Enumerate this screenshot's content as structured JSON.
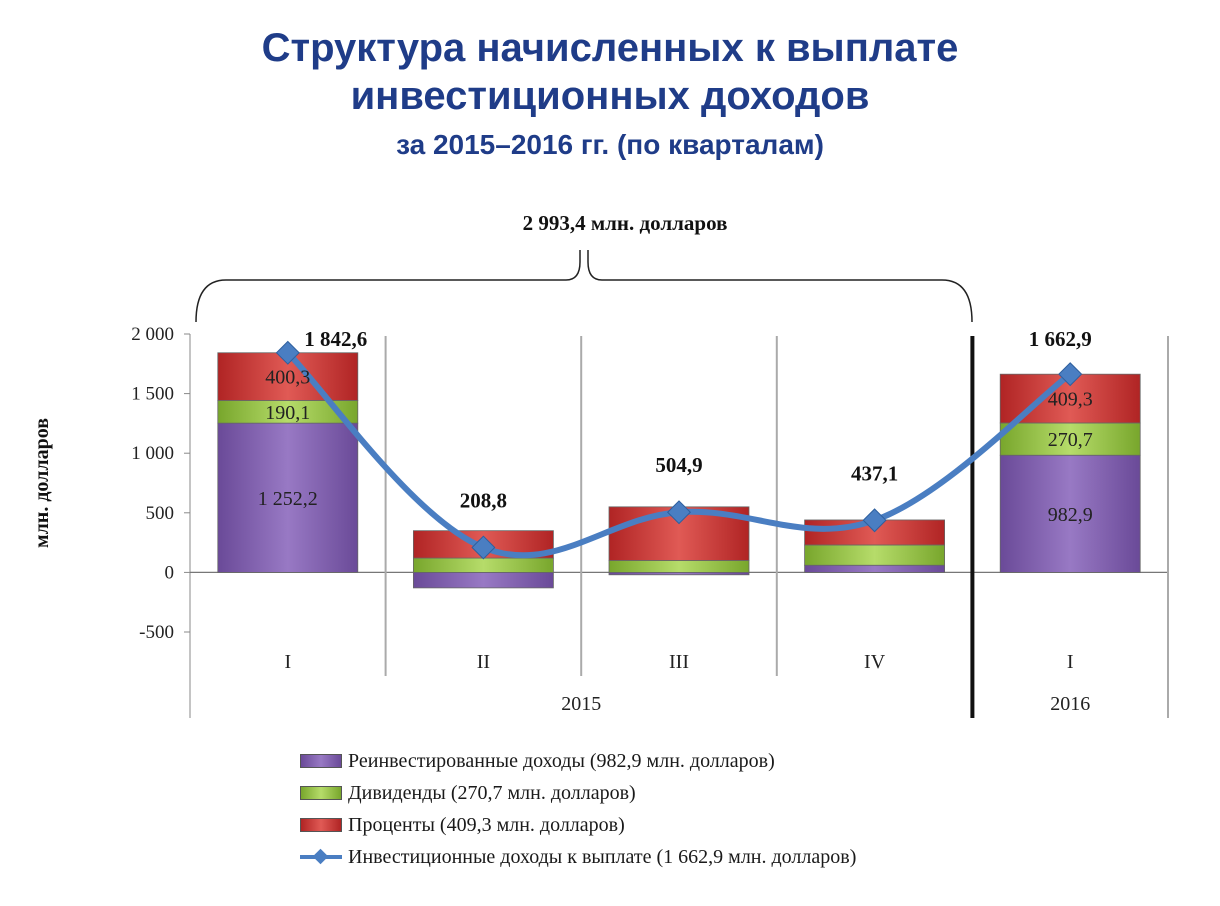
{
  "title": {
    "line1": "Структура начисленных к выплате",
    "line2": "инвестиционных доходов",
    "subtitle": "за 2015–2016 гг. (по кварталам)"
  },
  "colors": {
    "reinvested": "#7b5aa6",
    "dividends": "#8fbe3c",
    "interest": "#c8312f",
    "line": "#4a7ec2",
    "title": "#1f3c88"
  },
  "chart_data": {
    "type": "bar",
    "stacked": true,
    "ylabel": "млн. долларов",
    "ylim": [
      -500,
      2000
    ],
    "yticks": [
      -500,
      0,
      500,
      1000,
      1500,
      2000
    ],
    "ytick_labels": [
      "-500",
      "0",
      "500",
      "1 000",
      "1 500",
      "2 000"
    ],
    "categories": [
      "I",
      "II",
      "III",
      "IV",
      "I"
    ],
    "groups": [
      {
        "label": "2015",
        "span": [
          0,
          3
        ]
      },
      {
        "label": "2016",
        "span": [
          4,
          4
        ]
      }
    ],
    "bracket_label": "2 993,4 млн. долларов",
    "series": [
      {
        "name": "Реинвестированные доходы (982,9 млн. долларов)",
        "key": "reinvested",
        "values": [
          1252.2,
          -130,
          -20,
          60,
          982.9
        ],
        "labels": [
          "1 252,2",
          "",
          "",
          "",
          "982,9"
        ]
      },
      {
        "name": "Дивиденды (270,7 млн. долларов)",
        "key": "dividends",
        "values": [
          190.1,
          120,
          100,
          170,
          270.7
        ],
        "labels": [
          "190,1",
          "",
          "",
          "",
          "270,7"
        ]
      },
      {
        "name": "Проценты (409,3 млн. долларов)",
        "key": "interest",
        "values": [
          400.3,
          230,
          450,
          210,
          409.3
        ],
        "labels": [
          "400,3",
          "",
          "",
          "",
          "409,3"
        ]
      },
      {
        "name": "Инвестиционные доходы к выплате (1 662,9 млн. долларов)",
        "key": "line",
        "type": "line",
        "values": [
          1842.6,
          208.8,
          504.9,
          437.1,
          1662.9
        ],
        "labels": [
          "1 842,6",
          "208,8",
          "504,9",
          "437,1",
          "1 662,9"
        ]
      }
    ]
  }
}
